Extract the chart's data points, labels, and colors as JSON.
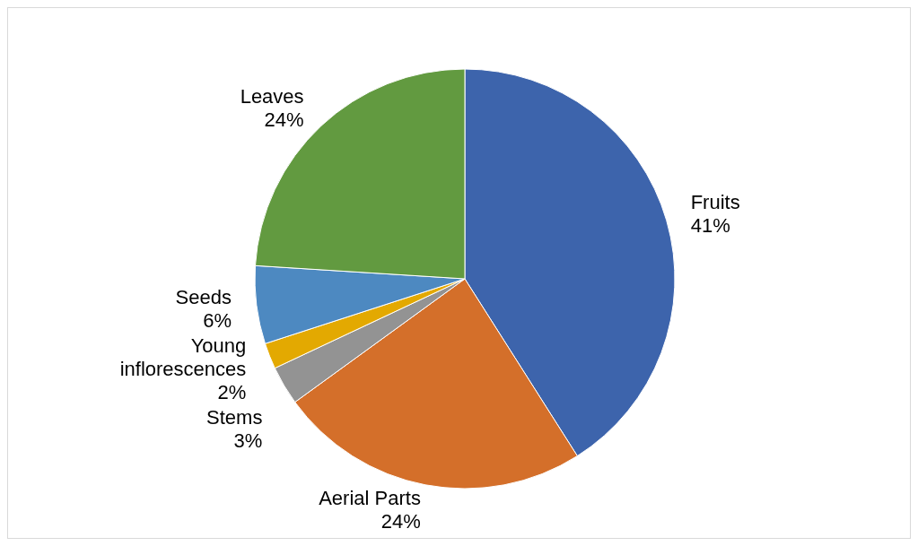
{
  "chart_data": {
    "type": "pie",
    "categories": [
      "Fruits",
      "Aerial Parts",
      "Stems",
      "Young inflorescences",
      "Seeds",
      "Leaves"
    ],
    "values": [
      41,
      24,
      3,
      2,
      6,
      24
    ],
    "value_labels": [
      "41%",
      "24%",
      "3%",
      "2%",
      "6%",
      "24%"
    ],
    "colors": [
      "#3d64ac",
      "#d46f2a",
      "#939393",
      "#e3a901",
      "#4d89c1",
      "#629a40"
    ]
  }
}
